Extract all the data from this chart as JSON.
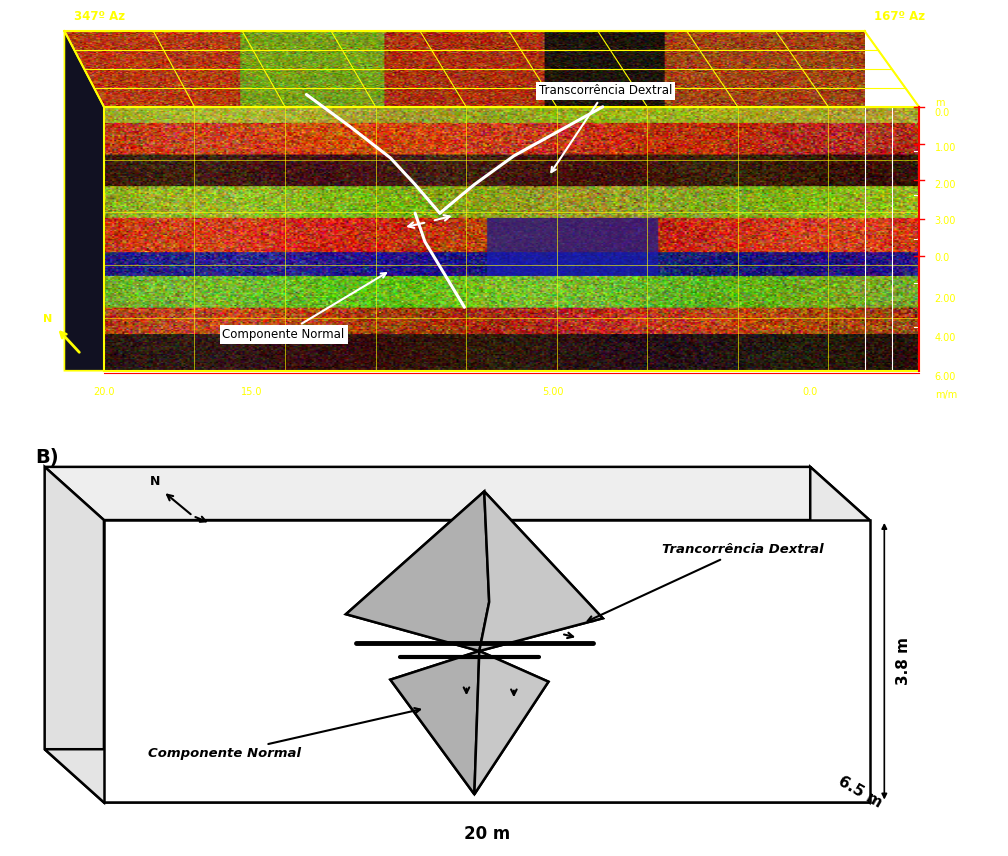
{
  "fig_width": 10.08,
  "fig_height": 8.56,
  "background_color": "#ffffff",
  "panel_A": {
    "bg_color": "#000000",
    "label_347": "347º Az",
    "label_167": "167º Az",
    "label_transcorrencia": "Transcorrência Dextral",
    "label_componente": "Componente Normal",
    "label_color": "#ffff00",
    "grid_color": "#ffff00",
    "red_color": "#ff0000"
  },
  "panel_B": {
    "label": "B)",
    "label_transcorrencia": "Trancorrência Dextral",
    "label_componente": "Componente Normal",
    "dim_38": "3.8 m",
    "dim_65": "6.5 m",
    "dim_20": "20 m",
    "fault_fill_light": "#c8c8c8",
    "fault_fill_mid": "#b0b0b0",
    "fault_fill_dark": "#989898",
    "fault_edge": "#000000"
  }
}
